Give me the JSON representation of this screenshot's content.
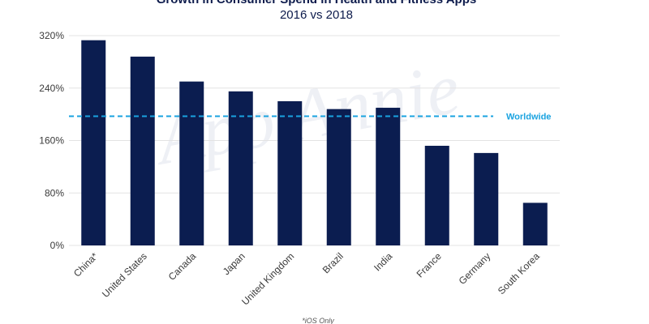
{
  "chart_data": {
    "type": "bar",
    "title": "Growth in Consumer Spend in Health and Fitness Apps",
    "subtitle": "2016 vs 2018",
    "categories": [
      "China*",
      "United States",
      "Canada",
      "Japan",
      "United Kingdom",
      "Brazil",
      "India",
      "France",
      "Germany",
      "South Korea"
    ],
    "values": [
      313,
      288,
      250,
      235,
      220,
      208,
      210,
      152,
      141,
      65
    ],
    "yticks": [
      "0%",
      "80%",
      "160%",
      "240%",
      "320%"
    ],
    "ytick_values": [
      0,
      80,
      160,
      240,
      320
    ],
    "ylim": [
      0,
      320
    ],
    "reference_line": {
      "label": "Worldwide",
      "value": 197,
      "color": "#1aa3e0"
    },
    "bar_color": "#0b1d50",
    "grid": true,
    "footnote": "*iOS Only",
    "watermark": "App Annie"
  }
}
